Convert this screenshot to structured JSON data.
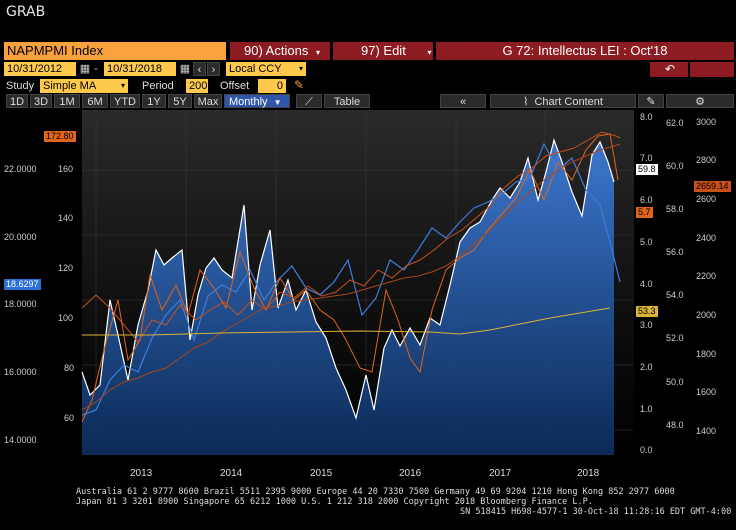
{
  "window": {
    "title": "GRAB"
  },
  "security": {
    "ticker": "NAPMPMI Index",
    "actions": "90) Actions",
    "edit": "97) Edit",
    "chart_title": "G 72: Intellectus LEI : Oct'18"
  },
  "range": {
    "start": "10/31/2012",
    "end": "10/31/2018",
    "currency": "Local CCY"
  },
  "study": {
    "label": "Study",
    "type": "Simple MA",
    "period_label": "Period",
    "period": "200",
    "offset_label": "Offset",
    "offset": "0"
  },
  "periods": [
    "1D",
    "3D",
    "1M",
    "6M",
    "YTD",
    "1Y",
    "5Y",
    "Max"
  ],
  "frequency": "Monthly",
  "view": {
    "table": "Table",
    "chart_content": "Chart Content"
  },
  "left_axis_values": [
    "22.0000",
    "20.0000",
    "18.0000",
    "16.0000",
    "14.0000"
  ],
  "left_tag": "18.6297",
  "axis2_values": [
    "160",
    "140",
    "120",
    "100",
    "80",
    "60"
  ],
  "axis2_tag": "172.80",
  "axis3_values": [
    "8.0",
    "7.0",
    "6.0",
    "5.0",
    "4.0",
    "3.0",
    "2.0",
    "1.0",
    "0.0"
  ],
  "axis4_values": [
    "62.0",
    "60.0",
    "58.0",
    "56.0",
    "54.0",
    "52.0",
    "50.0",
    "48.0"
  ],
  "axis5_values": [
    "3000",
    "2800",
    "2600",
    "2400",
    "2200",
    "2000",
    "1800",
    "1600",
    "1400"
  ],
  "tags": {
    "t598": "59.8",
    "t57": "5.7",
    "t533": "53.3",
    "t2659": "2659.14"
  },
  "years": [
    "2013",
    "2014",
    "2015",
    "2016",
    "2017",
    "2018"
  ],
  "colors": {
    "orange": "#f7a23c",
    "dark_red": "#8c1b22",
    "blue": "#3c7de0",
    "white": "#ffffff",
    "orange_line": "#e0651a",
    "yellow": "#d9b33a"
  },
  "footer": {
    "line1": "Australia 61 2 9777 8600 Brazil 5511 2395 9000 Europe 44 20 7330 7500 Germany 49 69 9204 1210 Hong Kong 852 2977 6000",
    "line2": "Japan 81 3 3201 8900       Singapore 65 6212 1000        U.S. 1 212 318 2000              Copyright 2018 Bloomberg Finance L.P.",
    "line3": "SN 518415 H698-4577-1 30-Oct-18 11:28:16 EDT  GMT-4:00"
  }
}
